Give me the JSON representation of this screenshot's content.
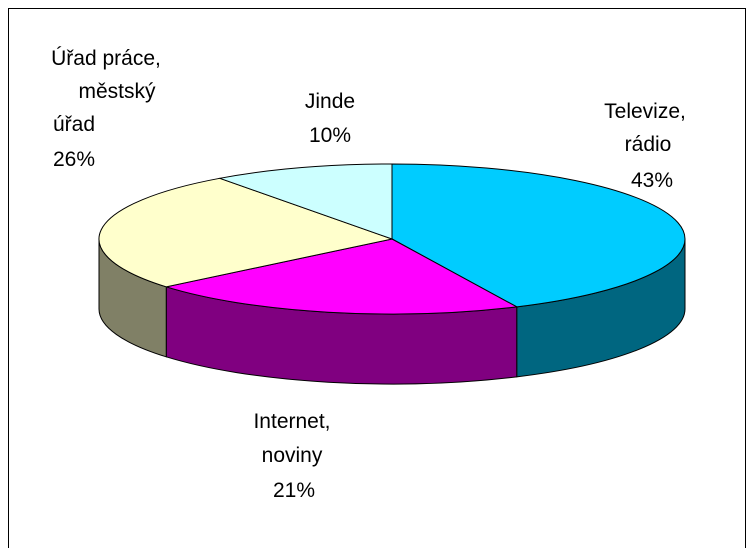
{
  "chart_data": {
    "type": "pie",
    "style": "3d",
    "title": "",
    "slices": [
      {
        "key": "tv",
        "label_lines": [
          "Televize,",
          "rádio"
        ],
        "value": 43,
        "value_label": "43%",
        "top_color": "#00CCFF",
        "side_color": "#006680"
      },
      {
        "key": "internet",
        "label_lines": [
          "Internet,",
          "noviny"
        ],
        "value": 21,
        "value_label": "21%",
        "top_color": "#FF00FF",
        "side_color": "#800080"
      },
      {
        "key": "urad",
        "label_lines": [
          "Úřad práce,",
          "městský",
          "úřad"
        ],
        "value": 26,
        "value_label": "26%",
        "top_color": "#FFFFCC",
        "side_color": "#808066"
      },
      {
        "key": "jinde",
        "label_lines": [
          "Jinde"
        ],
        "value": 10,
        "value_label": "10%",
        "top_color": "#CCFFFF",
        "side_color": "#668080"
      }
    ]
  }
}
